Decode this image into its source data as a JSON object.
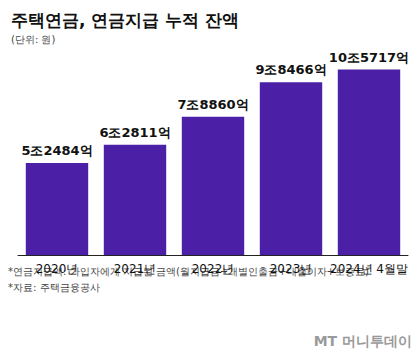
{
  "chart_data": {
    "type": "bar",
    "title": "주택연금, 연금지급 누적 잔액",
    "subtitle": "(단위: 원)",
    "categories": [
      "2020년",
      "2021년",
      "2022년",
      "2023년",
      "2024년 4월말"
    ],
    "values": [
      52484,
      62811,
      78860,
      98466,
      105717
    ],
    "value_labels": [
      "5조2484억",
      "6조2811억",
      "7조8860억",
      "9조8466억",
      "10조5717억"
    ],
    "color": "#4b1fa6",
    "ylim": [
      0,
      110000
    ],
    "grid": false,
    "data_labels": true,
    "tick_labels": "x",
    "notes": [
      "*연금지급액: 가입자에게 지급된 금액(월지급금+개별인출금+대출이자+보증료)",
      "*자료: 주택금융공사"
    ],
    "watermark": "MT 머니투데이"
  }
}
